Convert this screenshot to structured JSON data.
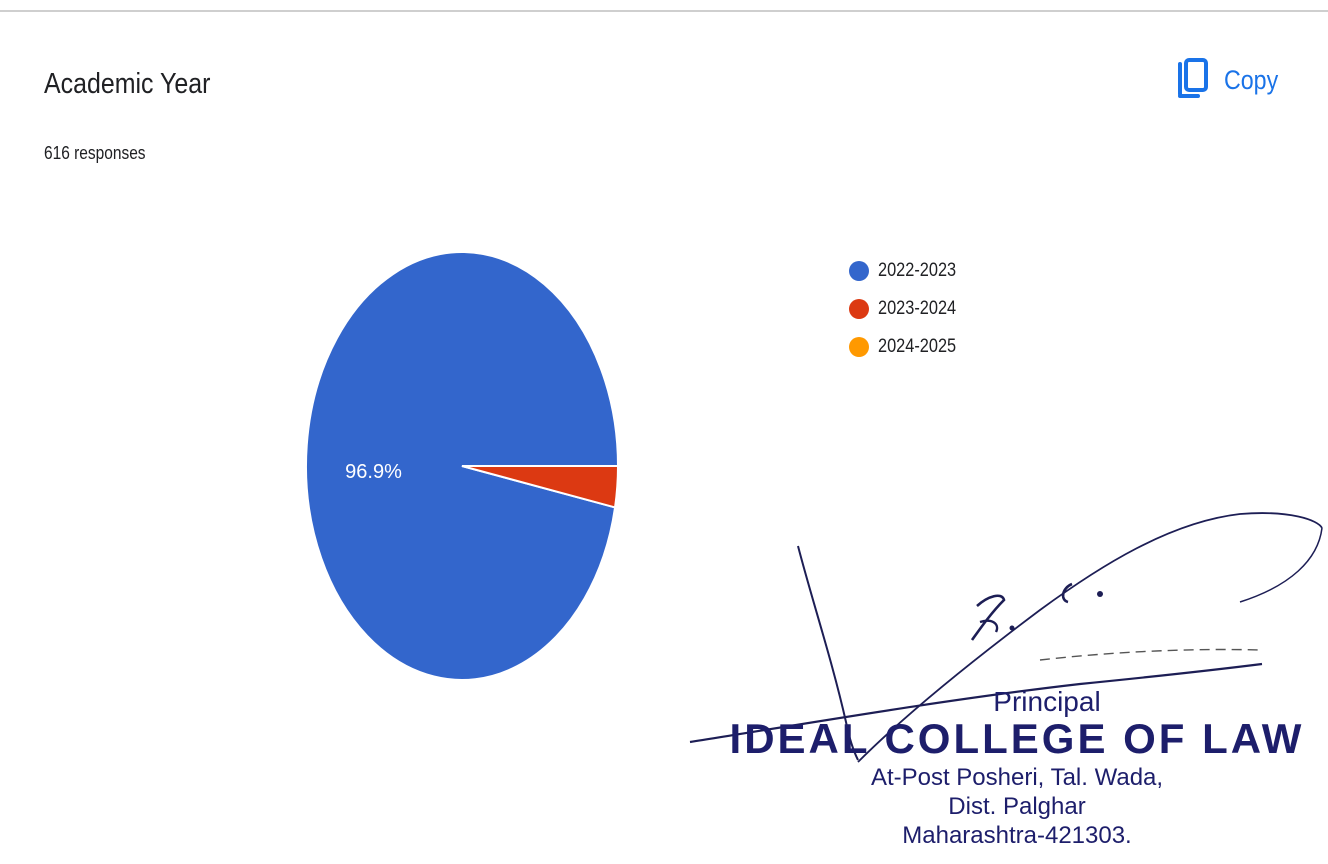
{
  "header": {
    "title": "Academic Year",
    "responses": "616 responses",
    "copy_label": "Copy",
    "copy_icon": "copy-icon"
  },
  "chart_data": {
    "type": "pie",
    "categories": [
      "2022-2023",
      "2023-2024",
      "2024-2025"
    ],
    "values": [
      96.9,
      3.1,
      0
    ],
    "colors": [
      "#3366cc",
      "#dc3912",
      "#ff9900"
    ],
    "slice_labels": [
      "96.9%",
      "",
      ""
    ],
    "legend_placement": "right",
    "title": "",
    "xlabel": "",
    "ylabel": ""
  },
  "stamp": {
    "role": "Principal",
    "institution": "IDEAL COLLEGE OF LAW",
    "address_line1": "At-Post Posheri, Tal. Wada,",
    "address_line2": "Dist. Palghar",
    "address_line3": "Maharashtra-421303."
  }
}
